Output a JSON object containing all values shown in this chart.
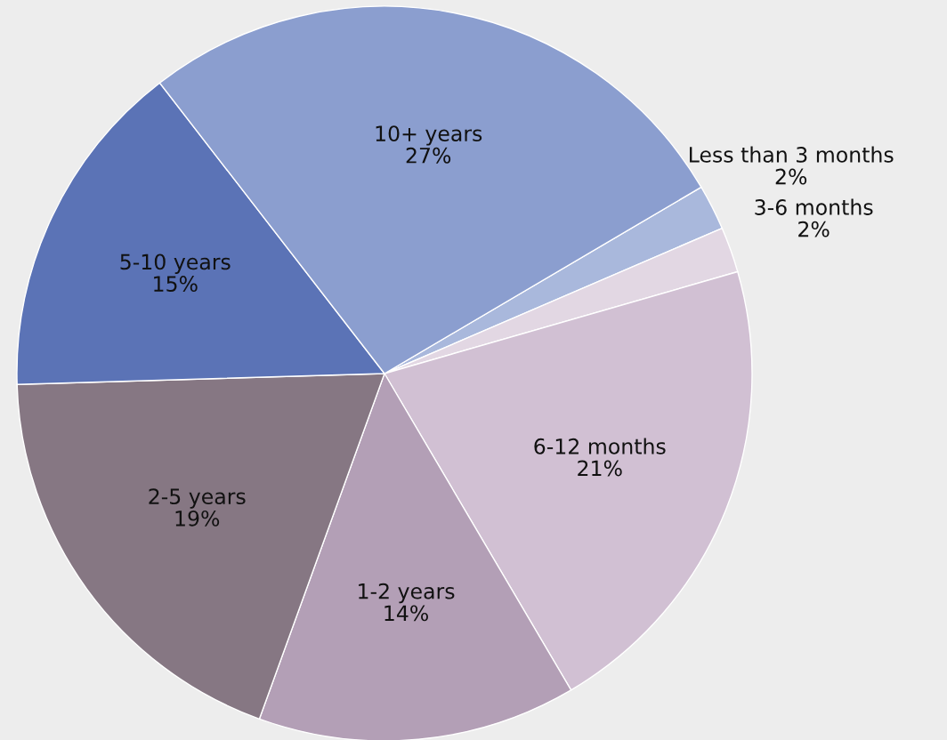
{
  "chart_data": {
    "type": "pie",
    "categories": [
      "Less than 3 months",
      "3-6 months",
      "6-12 months",
      "1-2 years",
      "2-5 years",
      "5-10 years",
      "10+ years"
    ],
    "values": [
      2,
      2,
      21,
      14,
      19,
      15,
      27
    ],
    "value_labels": [
      "2%",
      "2%",
      "21%",
      "14%",
      "19%",
      "15%",
      "27%"
    ],
    "colors": [
      "#a9b8dc",
      "#e2d7e3",
      "#d1c0d3",
      "#b39fb6",
      "#867783",
      "#5b73b6",
      "#8b9ecf"
    ]
  }
}
